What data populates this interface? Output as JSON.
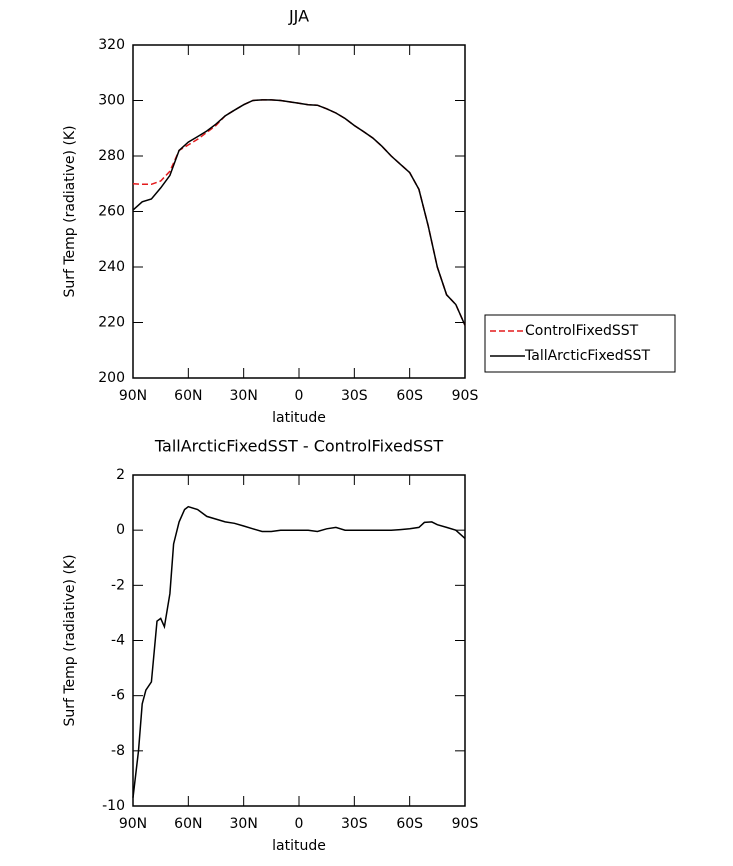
{
  "chart_data": [
    {
      "type": "line",
      "title": "JJA",
      "xlabel": "latitude",
      "ylabel": "Surf Temp (radiative) (K)",
      "x": [
        90,
        85,
        80,
        75,
        70,
        65,
        60,
        55,
        50,
        45,
        40,
        35,
        30,
        25,
        20,
        15,
        10,
        5,
        0,
        -5,
        -10,
        -15,
        -20,
        -25,
        -30,
        -35,
        -40,
        -45,
        -50,
        -55,
        -60,
        -65,
        -70,
        -75,
        -80,
        -85,
        -90
      ],
      "series": [
        {
          "name": "ControlFixedSST",
          "color": "#e31a1c",
          "line_style": "dashed",
          "values": [
            270,
            269.8,
            269.8,
            271,
            274.5,
            282,
            284,
            286,
            288.5,
            291,
            294.5,
            296.5,
            298.5,
            300,
            300.2,
            300.2,
            300,
            299.5,
            299,
            298.5,
            298.3,
            297,
            295.5,
            293.5,
            291,
            288.8,
            286.5,
            283.5,
            280,
            277,
            274,
            268,
            255,
            240,
            230,
            226.5,
            219
          ]
        },
        {
          "name": "TallArcticFixedSST",
          "color": "#000000",
          "line_style": "solid",
          "values": [
            260.5,
            263.5,
            264.5,
            268.5,
            273,
            282,
            285,
            287,
            289,
            291.5,
            294.5,
            296.5,
            298.5,
            300,
            300.2,
            300.2,
            300,
            299.5,
            299,
            298.5,
            298.3,
            297,
            295.5,
            293.5,
            291,
            288.8,
            286.5,
            283.5,
            280,
            277,
            274,
            268,
            255,
            240,
            230,
            226.5,
            219
          ]
        }
      ],
      "xlim": [
        90,
        -90
      ],
      "xticks": [
        {
          "value": 90,
          "label": "90N"
        },
        {
          "value": 60,
          "label": "60N"
        },
        {
          "value": 30,
          "label": "30N"
        },
        0,
        {
          "value": -30,
          "label": "30S"
        },
        {
          "value": -60,
          "label": "60S"
        },
        {
          "value": -90,
          "label": "90S"
        }
      ],
      "ylim": [
        200,
        320
      ],
      "yticks": [
        200,
        220,
        240,
        260,
        280,
        300,
        320
      ],
      "legend": "right"
    },
    {
      "type": "line",
      "title": "TallArcticFixedSST - ControlFixedSST",
      "xlabel": "latitude",
      "ylabel": "Surf Temp (radiative) (K)",
      "x": [
        90,
        87,
        85,
        83,
        80,
        77,
        75,
        73,
        70,
        68,
        65,
        62,
        60,
        55,
        50,
        45,
        40,
        35,
        30,
        25,
        20,
        15,
        10,
        5,
        0,
        -5,
        -10,
        -15,
        -20,
        -25,
        -30,
        -35,
        -40,
        -45,
        -50,
        -55,
        -60,
        -65,
        -68,
        -72,
        -75,
        -80,
        -85,
        -90
      ],
      "series": [
        {
          "color": "#000000",
          "line_style": "solid",
          "values": [
            -9.7,
            -8,
            -6.3,
            -5.8,
            -5.5,
            -3.3,
            -3.2,
            -3.5,
            -2.3,
            -0.5,
            0.3,
            0.75,
            0.85,
            0.75,
            0.5,
            0.4,
            0.3,
            0.25,
            0.15,
            0.05,
            -0.05,
            -0.05,
            0,
            0,
            0,
            0,
            -0.05,
            0.05,
            0.1,
            0,
            0,
            0,
            0,
            0,
            0,
            0.02,
            0.05,
            0.1,
            0.28,
            0.3,
            0.2,
            0.1,
            0,
            -0.3
          ]
        }
      ],
      "xlim": [
        90,
        -90
      ],
      "xticks": [
        {
          "value": 90,
          "label": "90N"
        },
        {
          "value": 60,
          "label": "60N"
        },
        {
          "value": 30,
          "label": "30N"
        },
        0,
        {
          "value": -30,
          "label": "30S"
        },
        {
          "value": -60,
          "label": "60S"
        },
        {
          "value": -90,
          "label": "90S"
        }
      ],
      "ylim": [
        -10,
        2
      ],
      "yticks": [
        -10,
        -8,
        -6,
        -4,
        -2,
        0,
        2
      ]
    }
  ]
}
